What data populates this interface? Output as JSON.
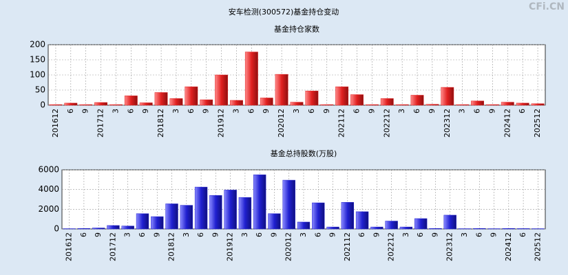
{
  "title": "安车检测(300572)基金持仓变动",
  "watermark": "CFi.CN",
  "chart_data": [
    {
      "type": "bar",
      "title": "基金持仓家数",
      "categories": [
        "201612",
        "6",
        "9",
        "201712",
        "3",
        "6",
        "9",
        "201812",
        "3",
        "6",
        "9",
        "201912",
        "3",
        "6",
        "9",
        "202012",
        "3",
        "6",
        "9",
        "202112",
        "6",
        "9",
        "202212",
        "3",
        "6",
        "9",
        "202312",
        "3",
        "6",
        "9",
        "202412",
        "6",
        "202512"
      ],
      "values": [
        2,
        7,
        2,
        9,
        2,
        31,
        8,
        42,
        22,
        61,
        18,
        100,
        16,
        176,
        24,
        102,
        10,
        47,
        2,
        61,
        35,
        2,
        22,
        2,
        33,
        3,
        59,
        2,
        14,
        2,
        10,
        7,
        5
      ],
      "color": "#e02020",
      "ylim": [
        0,
        200
      ],
      "yticks": [
        0,
        50,
        100,
        150,
        200
      ],
      "grid": true
    },
    {
      "type": "bar",
      "title": "基金总持股数(万股)",
      "categories": [
        "201612",
        "6",
        "9",
        "201712",
        "3",
        "6",
        "9",
        "201812",
        "3",
        "6",
        "9",
        "201912",
        "3",
        "6",
        "9",
        "202012",
        "3",
        "6",
        "9",
        "202112",
        "6",
        "9",
        "202212",
        "3",
        "6",
        "9",
        "202312",
        "3",
        "6",
        "9",
        "202412",
        "6",
        "202512"
      ],
      "values": [
        30,
        50,
        100,
        350,
        300,
        1550,
        1250,
        2550,
        2400,
        4250,
        3400,
        3950,
        3200,
        5500,
        1550,
        4950,
        700,
        2650,
        200,
        2700,
        1750,
        200,
        800,
        200,
        1050,
        50,
        1400,
        30,
        50,
        30,
        50,
        40,
        30
      ],
      "color": "#2020d0",
      "ylim": [
        0,
        6000
      ],
      "yticks": [
        0,
        2000,
        4000,
        6000
      ],
      "grid": true
    }
  ]
}
